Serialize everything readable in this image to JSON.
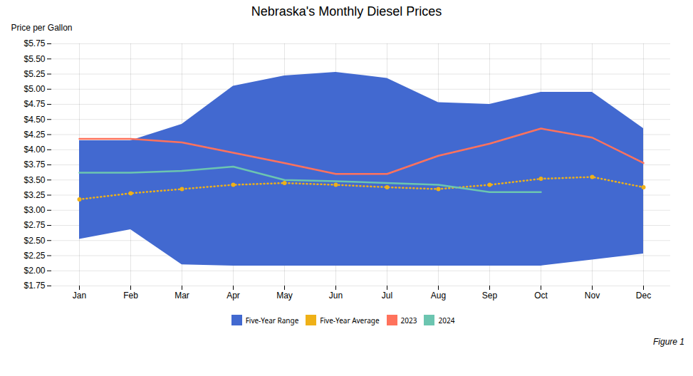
{
  "chart_data": {
    "type": "line",
    "title": "Nebraska's Monthly Diesel Prices",
    "ylabel": "Price per Gallon",
    "categories": [
      "Jan",
      "Feb",
      "Mar",
      "Apr",
      "May",
      "Jun",
      "Jul",
      "Aug",
      "Sep",
      "Oct",
      "Nov",
      "Dec"
    ],
    "series": [
      {
        "name": "Five-Year Range",
        "type": "area",
        "upper": [
          4.15,
          4.15,
          4.42,
          5.05,
          5.22,
          5.28,
          5.18,
          4.78,
          4.75,
          4.95,
          4.95,
          4.35
        ],
        "lower": [
          2.52,
          2.68,
          2.1,
          2.08,
          2.08,
          2.08,
          2.08,
          2.08,
          2.08,
          2.08,
          2.18,
          2.28
        ]
      },
      {
        "name": "Five-Year Average",
        "type": "line",
        "line_style": "dotted",
        "marker": "circle",
        "values": [
          3.18,
          3.28,
          3.35,
          3.42,
          3.45,
          3.42,
          3.38,
          3.35,
          3.42,
          3.52,
          3.55,
          3.38
        ]
      },
      {
        "name": "2023",
        "type": "line",
        "values": [
          4.18,
          4.18,
          4.12,
          3.95,
          3.78,
          3.6,
          3.6,
          3.9,
          4.1,
          4.35,
          4.2,
          3.78
        ]
      },
      {
        "name": "2024",
        "type": "line",
        "values": [
          3.62,
          3.62,
          3.65,
          3.72,
          3.5,
          3.48,
          3.45,
          3.42,
          3.3,
          3.3,
          null,
          null
        ]
      }
    ],
    "ylim": [
      1.75,
      5.75
    ],
    "yticks": [
      {
        "value": 1.75,
        "label": "$1.75"
      },
      {
        "value": 2.0,
        "label": "$2.00"
      },
      {
        "value": 2.25,
        "label": "$2.25"
      },
      {
        "value": 2.5,
        "label": "$2.50"
      },
      {
        "value": 2.75,
        "label": "$2.75"
      },
      {
        "value": 3.0,
        "label": "$3.00"
      },
      {
        "value": 3.25,
        "label": "$3.25"
      },
      {
        "value": 3.5,
        "label": "$3.50"
      },
      {
        "value": 3.75,
        "label": "$3.75"
      },
      {
        "value": 4.0,
        "label": "$4.00"
      },
      {
        "value": 4.25,
        "label": "$4.25"
      },
      {
        "value": 4.5,
        "label": "$4.50"
      },
      {
        "value": 4.75,
        "label": "$4.75"
      },
      {
        "value": 5.0,
        "label": "$5.00"
      },
      {
        "value": 5.25,
        "label": "$5.25"
      },
      {
        "value": 5.5,
        "label": "$5.50"
      },
      {
        "value": 5.75,
        "label": "$5.75"
      }
    ],
    "grid": true,
    "legend": "bottom",
    "annotation": "Figure 1"
  }
}
